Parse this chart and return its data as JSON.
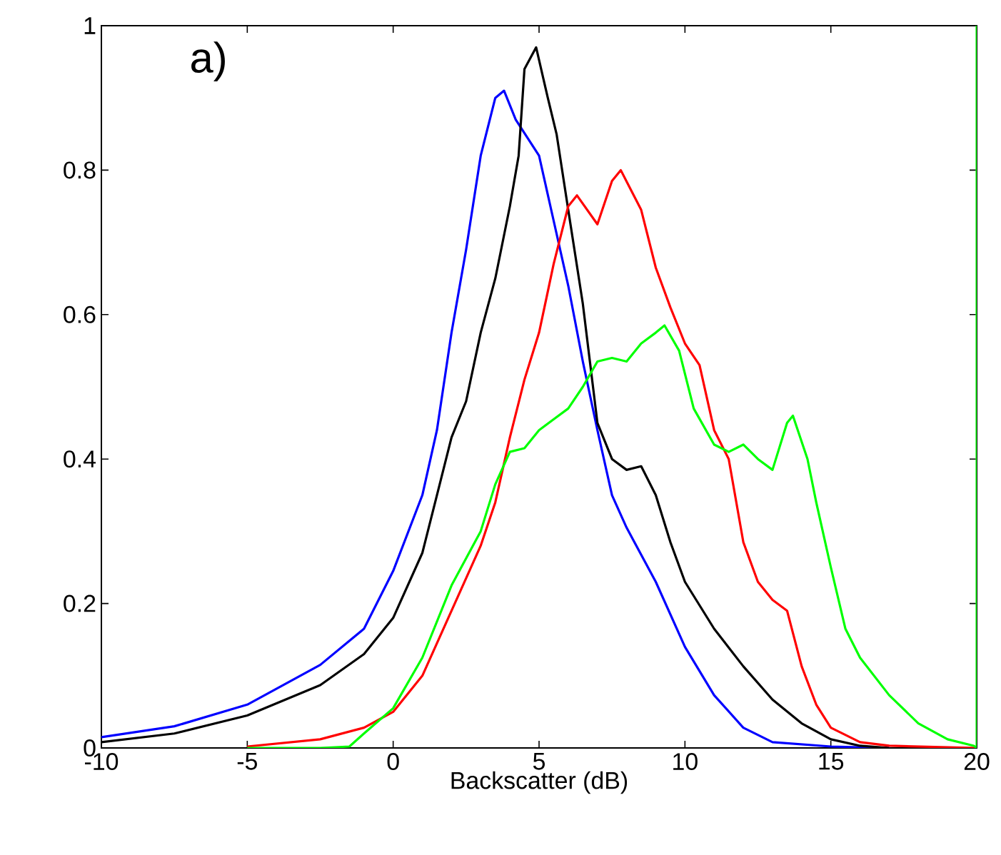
{
  "chart_data": {
    "type": "line",
    "xlabel": "Backscatter (dB)",
    "annotations": [
      "a)"
    ],
    "xlim": [
      -10,
      20
    ],
    "ylim": [
      0,
      1
    ],
    "xticks": [
      -10,
      -5,
      0,
      5,
      10,
      15,
      20
    ],
    "yticks": [
      0,
      0.2,
      0.4,
      0.6,
      0.8,
      1
    ],
    "grid": false,
    "series": [
      {
        "color": "#0000ff",
        "x": [
          -10,
          -7.5,
          -5,
          -2.5,
          -1,
          0,
          1,
          1.5,
          2,
          2.5,
          3,
          3.5,
          3.8,
          4.2,
          5,
          5.5,
          6,
          6.5,
          7,
          7.5,
          8,
          9,
          10,
          11,
          12,
          13,
          15,
          17
        ],
        "values": [
          0.015,
          0.03,
          0.06,
          0.115,
          0.165,
          0.245,
          0.35,
          0.44,
          0.575,
          0.69,
          0.82,
          0.9,
          0.91,
          0.87,
          0.82,
          0.73,
          0.64,
          0.535,
          0.44,
          0.35,
          0.305,
          0.23,
          0.14,
          0.073,
          0.028,
          0.008,
          0.002,
          0
        ]
      },
      {
        "color": "#000000",
        "x": [
          -10,
          -7.5,
          -5,
          -2.5,
          -1,
          0,
          1,
          1.5,
          2,
          2.5,
          3,
          3.5,
          4,
          4.3,
          4.5,
          4.9,
          5.3,
          5.6,
          6,
          6.5,
          7,
          7.5,
          8,
          8.5,
          9,
          9.5,
          10,
          11,
          12,
          13,
          14,
          15,
          16,
          17
        ],
        "values": [
          0.008,
          0.02,
          0.045,
          0.087,
          0.13,
          0.18,
          0.27,
          0.35,
          0.43,
          0.48,
          0.575,
          0.65,
          0.75,
          0.82,
          0.94,
          0.97,
          0.9,
          0.85,
          0.745,
          0.615,
          0.45,
          0.4,
          0.385,
          0.39,
          0.35,
          0.285,
          0.23,
          0.165,
          0.113,
          0.067,
          0.034,
          0.012,
          0.003,
          0
        ]
      },
      {
        "color": "#ff0000",
        "x": [
          -5,
          -2.5,
          -1,
          0,
          1,
          2,
          3,
          3.5,
          4,
          4.5,
          5,
          5.5,
          6,
          6.3,
          7,
          7.5,
          7.8,
          8.5,
          9,
          9.5,
          10,
          10.5,
          11,
          11.5,
          12,
          12.5,
          13,
          13.5,
          14,
          14.5,
          15,
          16,
          17,
          20
        ],
        "values": [
          0.002,
          0.012,
          0.028,
          0.05,
          0.1,
          0.19,
          0.28,
          0.34,
          0.43,
          0.51,
          0.575,
          0.67,
          0.75,
          0.765,
          0.725,
          0.785,
          0.8,
          0.745,
          0.665,
          0.61,
          0.56,
          0.53,
          0.44,
          0.4,
          0.285,
          0.23,
          0.205,
          0.19,
          0.113,
          0.06,
          0.028,
          0.008,
          0.003,
          0
        ]
      },
      {
        "color": "#00ff00",
        "x": [
          -5,
          -2.5,
          -1.5,
          -1,
          0,
          1,
          2,
          3,
          3.5,
          4,
          4.5,
          5,
          5.5,
          6,
          6.5,
          7,
          7.5,
          8,
          8.5,
          9,
          9.3,
          9.8,
          10.3,
          11,
          11.5,
          12,
          12.5,
          13,
          13.5,
          13.7,
          14.2,
          14.5,
          15,
          15.5,
          16,
          17,
          18,
          19,
          19.9,
          20,
          20
        ],
        "values": [
          0,
          0,
          0.002,
          0.02,
          0.055,
          0.125,
          0.225,
          0.3,
          0.365,
          0.41,
          0.415,
          0.44,
          0.455,
          0.47,
          0.5,
          0.535,
          0.54,
          0.535,
          0.56,
          0.575,
          0.585,
          0.55,
          0.47,
          0.42,
          0.41,
          0.42,
          0.4,
          0.385,
          0.45,
          0.46,
          0.4,
          0.34,
          0.25,
          0.165,
          0.125,
          0.073,
          0.034,
          0.012,
          0.003,
          0,
          1
        ]
      }
    ]
  }
}
